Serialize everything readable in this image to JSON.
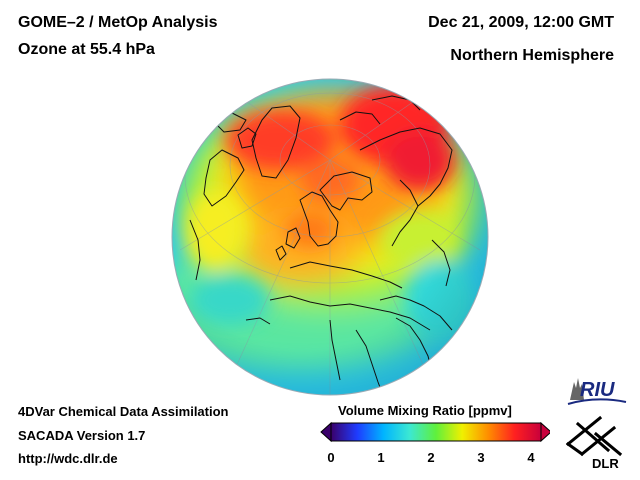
{
  "header": {
    "title": "GOME–2 / MetOp Analysis",
    "quantity": "Ozone at 55.4 hPa",
    "datetime": "Dec 21, 2009, 12:00 GMT",
    "region": "Northern Hemisphere"
  },
  "footer": {
    "method": "4DVar Chemical Data Assimilation",
    "version": "SACADA Version 1.7",
    "url": "http://wdc.dlr.de"
  },
  "colorbar": {
    "title": "Volume Mixing Ratio [ppmv]",
    "ticks": [
      "0",
      "1",
      "2",
      "3",
      "4"
    ],
    "range": [
      0,
      4
    ],
    "colors": [
      "#3a006a",
      "#1e3cff",
      "#00b4ff",
      "#3ce8d2",
      "#5ff03c",
      "#f0f000",
      "#ff8c00",
      "#ff2020",
      "#c8003c"
    ]
  },
  "logos": {
    "riu": "RIU",
    "dlr": "DLR"
  },
  "map": {
    "projection": "orthographic",
    "features": [
      "ozone-field",
      "coastlines",
      "graticule"
    ]
  }
}
